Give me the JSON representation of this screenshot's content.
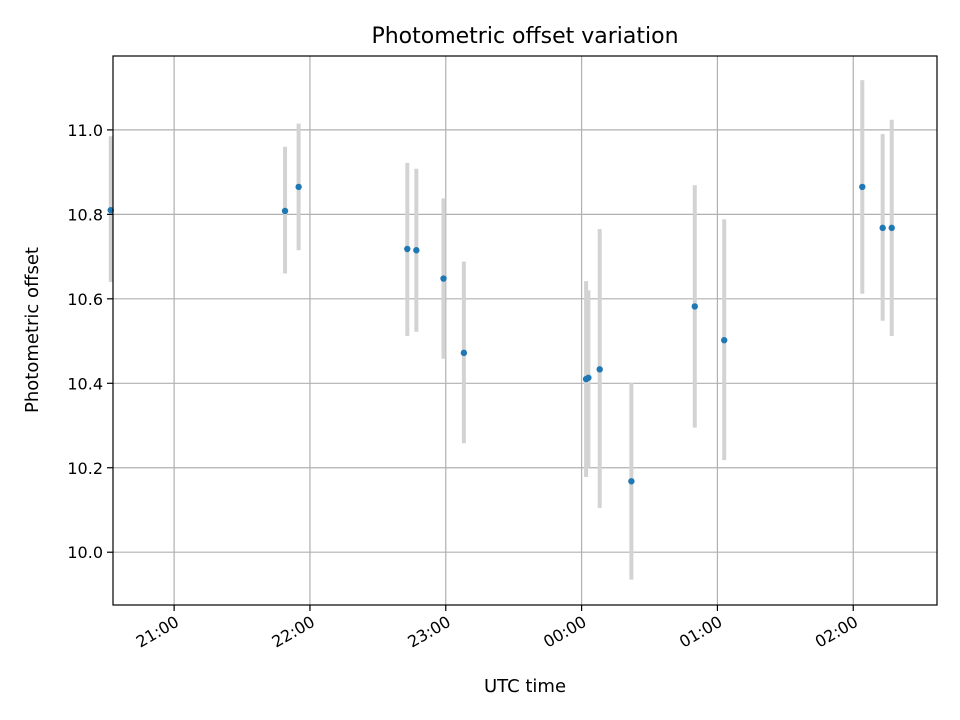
{
  "chart_data": {
    "type": "scatter",
    "title": "Photometric offset variation",
    "xlabel": "UTC time",
    "ylabel": "Photometric offset",
    "x_axis_kind": "time",
    "xlim": [
      "20:33",
      "02:37"
    ],
    "ylim": [
      9.875,
      11.175
    ],
    "x_ticks": [
      "21:00",
      "22:00",
      "23:00",
      "00:00",
      "01:00",
      "02:00"
    ],
    "y_ticks": [
      10.0,
      10.2,
      10.4,
      10.6,
      10.8,
      11.0
    ],
    "grid": true,
    "colors": {
      "point": "#1f77b4",
      "errorbar": "#d3d3d3"
    },
    "points": [
      {
        "time": "20:32",
        "y": 10.81,
        "lo": 10.64,
        "hi": 10.985
      },
      {
        "time": "21:49",
        "y": 10.808,
        "lo": 10.66,
        "hi": 10.96
      },
      {
        "time": "21:55",
        "y": 10.865,
        "lo": 10.715,
        "hi": 11.015
      },
      {
        "time": "22:43",
        "y": 10.718,
        "lo": 10.512,
        "hi": 10.922
      },
      {
        "time": "22:47",
        "y": 10.715,
        "lo": 10.522,
        "hi": 10.908
      },
      {
        "time": "22:59",
        "y": 10.648,
        "lo": 10.458,
        "hi": 10.838
      },
      {
        "time": "23:08",
        "y": 10.472,
        "lo": 10.258,
        "hi": 10.688
      },
      {
        "time": "00:02",
        "y": 10.41,
        "lo": 10.178,
        "hi": 10.642
      },
      {
        "time": "00:03",
        "y": 10.413,
        "lo": 10.2,
        "hi": 10.62
      },
      {
        "time": "00:08",
        "y": 10.433,
        "lo": 10.105,
        "hi": 10.765
      },
      {
        "time": "00:22",
        "y": 10.168,
        "lo": 9.935,
        "hi": 10.402
      },
      {
        "time": "00:50",
        "y": 10.582,
        "lo": 10.295,
        "hi": 10.869
      },
      {
        "time": "01:03",
        "y": 10.502,
        "lo": 10.218,
        "hi": 10.788
      },
      {
        "time": "02:04",
        "y": 10.865,
        "lo": 10.612,
        "hi": 11.118
      },
      {
        "time": "02:13",
        "y": 10.768,
        "lo": 10.548,
        "hi": 10.99
      },
      {
        "time": "02:17",
        "y": 10.768,
        "lo": 10.512,
        "hi": 11.024
      }
    ]
  }
}
